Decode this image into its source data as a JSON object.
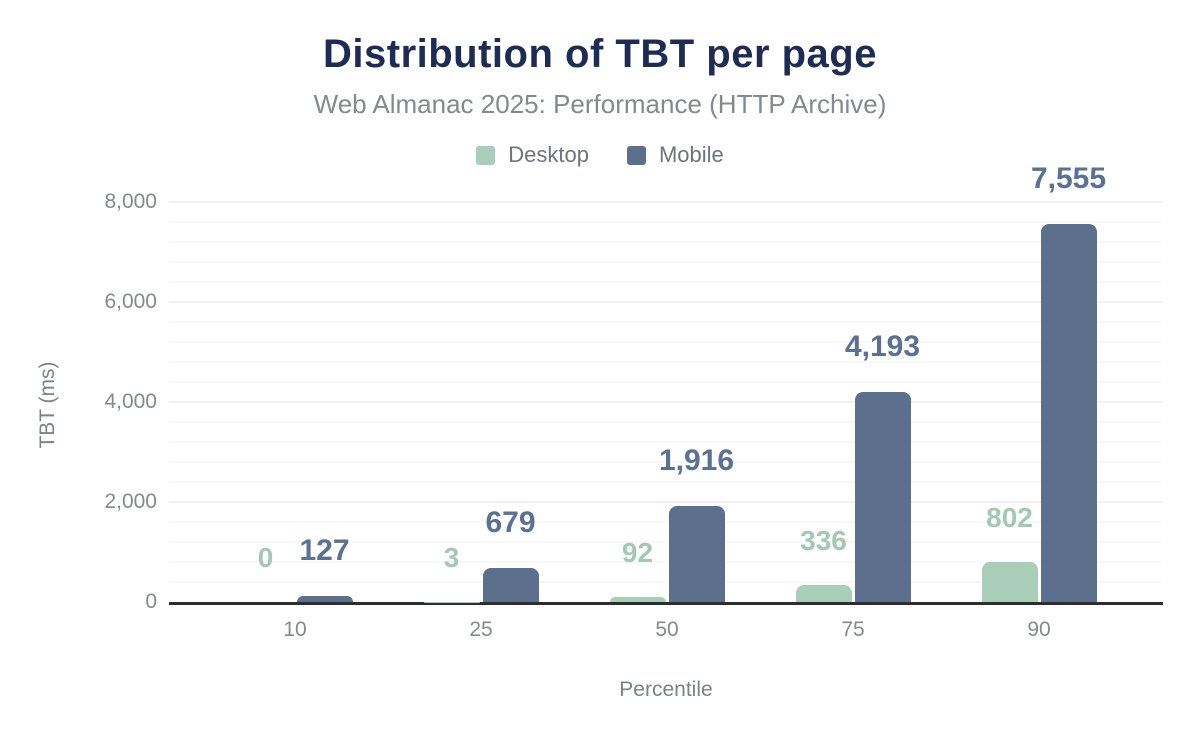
{
  "chart_data": {
    "type": "bar",
    "title": "Distribution of TBT per page",
    "subtitle": "Web Almanac 2025: Performance (HTTP Archive)",
    "xlabel": "Percentile",
    "ylabel": "TBT (ms)",
    "categories": [
      "10",
      "25",
      "50",
      "75",
      "90"
    ],
    "series": [
      {
        "name": "Desktop",
        "color": "#a8cdb9",
        "label_color": "#a3c9b4",
        "values": [
          0,
          3,
          92,
          336,
          802
        ],
        "labels": [
          "0",
          "3",
          "92",
          "336",
          "802"
        ]
      },
      {
        "name": "Mobile",
        "color": "#5c6f8d",
        "label_color": "#5a7094",
        "values": [
          127,
          679,
          1916,
          4193,
          7555
        ],
        "labels": [
          "127",
          "679",
          "1,916",
          "4,193",
          "7,555"
        ]
      }
    ],
    "ylim": [
      0,
      8000
    ],
    "yticks": [
      {
        "value": 0,
        "label": "0"
      },
      {
        "value": 2000,
        "label": "2,000"
      },
      {
        "value": 4000,
        "label": "4,000"
      },
      {
        "value": 6000,
        "label": "6,000"
      },
      {
        "value": 8000,
        "label": "8,000"
      }
    ],
    "grid": {
      "minor_step": 400,
      "major_step": 2000
    },
    "legend_position": "top",
    "colors": {
      "title": "#1d2c54",
      "subtitle": "#85898f",
      "axis_ticks": "#85898f",
      "axis_line": "#2e2e2e",
      "background": "#ffffff"
    }
  }
}
